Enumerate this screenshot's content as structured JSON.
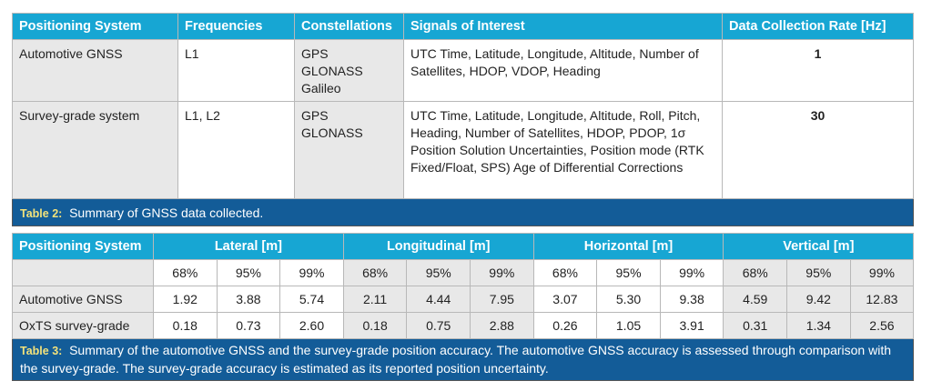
{
  "table2": {
    "headers": [
      "Positioning System",
      "Frequencies",
      "Constellations",
      "Signals of Interest",
      "Data Collection Rate [Hz]"
    ],
    "rows": [
      {
        "system": "Automotive GNSS",
        "frequencies": "L1",
        "constellations": [
          "GPS",
          "GLONASS",
          "Galileo"
        ],
        "signals": "UTC Time, Latitude, Longitude, Altitude, Number of Satellites, HDOP, VDOP, Heading",
        "rate": "1"
      },
      {
        "system": "Survey-grade system",
        "frequencies": "L1, L2",
        "constellations": [
          "GPS",
          "GLONASS"
        ],
        "signals": "UTC Time, Latitude, Longitude, Altitude, Roll, Pitch, Heading, Number of Satellites, HDOP, PDOP, 1σ Position Solution Uncertainties, Position mode (RTK Fixed/Float, SPS) Age of Differential Corrections",
        "rate": "30"
      }
    ],
    "caption_label": "Table 2:",
    "caption": "Summary of GNSS data collected."
  },
  "table3": {
    "header_first": "Positioning System",
    "groups": [
      "Lateral [m]",
      "Longitudinal [m]",
      "Horizontal [m]",
      "Vertical [m]"
    ],
    "percentiles": [
      "68%",
      "95%",
      "99%"
    ],
    "rows": [
      {
        "system": "Automotive GNSS",
        "values": [
          "1.92",
          "3.88",
          "5.74",
          "2.11",
          "4.44",
          "7.95",
          "3.07",
          "5.30",
          "9.38",
          "4.59",
          "9.42",
          "12.83"
        ]
      },
      {
        "system": "OxTS survey-grade",
        "values": [
          "0.18",
          "0.73",
          "2.60",
          "0.18",
          "0.75",
          "2.88",
          "0.26",
          "1.05",
          "3.91",
          "0.31",
          "1.34",
          "2.56"
        ]
      }
    ],
    "caption_label": "Table 3:",
    "caption": "Summary of the automotive GNSS and the survey-grade position accuracy. The automotive GNSS accuracy is assessed through comparison with the survey-grade. The survey-grade accuracy is estimated as its reported position uncertainty."
  },
  "colors": {
    "header": "#17a6d3",
    "caption": "#135c98",
    "label": "#f3e27b"
  }
}
